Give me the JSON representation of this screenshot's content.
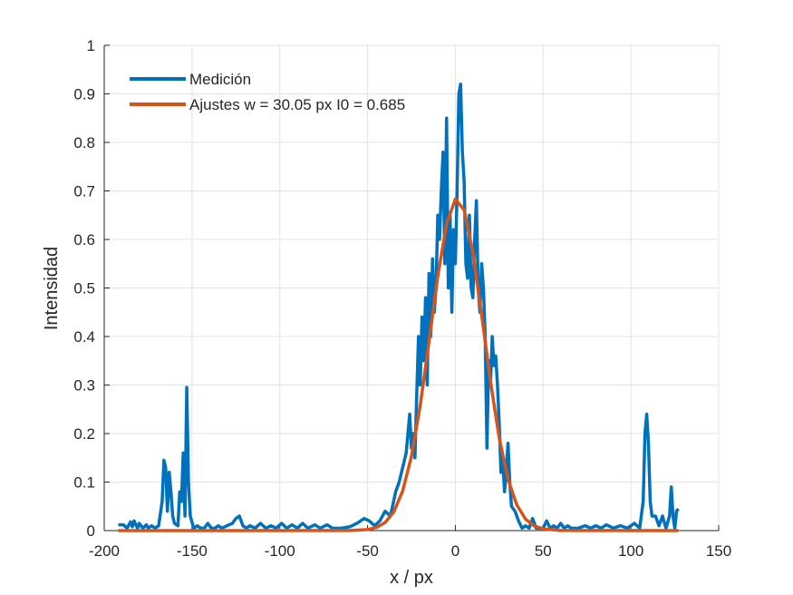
{
  "chart_data": {
    "type": "line",
    "xlabel": "x / px",
    "ylabel": "Intensidad",
    "xlim": [
      -200,
      150
    ],
    "ylim": [
      0,
      1
    ],
    "xticks": [
      -200,
      -150,
      -100,
      -50,
      0,
      50,
      100,
      150
    ],
    "yticks": [
      0,
      0.1,
      0.2,
      0.3,
      0.4,
      0.5,
      0.6,
      0.7,
      0.8,
      0.9,
      1
    ],
    "grid": true,
    "legend_position": "upper-left",
    "series": [
      {
        "name": "Medición",
        "color": "#0072bd",
        "x": [
          -192,
          -189,
          -187,
          -185,
          -184,
          -183,
          -181,
          -180,
          -178,
          -176,
          -175,
          -173,
          -171,
          -169,
          -167,
          -166,
          -165,
          -164,
          -163,
          -162,
          -161,
          -160,
          -158,
          -157,
          -156,
          -155,
          -154,
          -153,
          -152,
          -151,
          -149,
          -147,
          -145,
          -143,
          -141,
          -139,
          -137,
          -135,
          -133,
          -130,
          -127,
          -125,
          -123,
          -121,
          -119,
          -117,
          -114,
          -111,
          -108,
          -105,
          -102,
          -99,
          -96,
          -93,
          -90,
          -87,
          -84,
          -80,
          -77,
          -73,
          -70,
          -65,
          -60,
          -56,
          -52,
          -49,
          -46,
          -43,
          -40,
          -37,
          -34,
          -32,
          -30,
          -28,
          -26,
          -25,
          -24,
          -23,
          -22,
          -21,
          -20,
          -19,
          -18,
          -17,
          -16,
          -15,
          -14,
          -13,
          -12,
          -11,
          -10,
          -9,
          -8,
          -7,
          -6,
          -5,
          -4,
          -3,
          -2,
          -1,
          0,
          1,
          2,
          3,
          4,
          5,
          6,
          7,
          8,
          9,
          10,
          11,
          12,
          13,
          14,
          15,
          16,
          17,
          18,
          19,
          20,
          21,
          22,
          23,
          24,
          25,
          26,
          27,
          28,
          29,
          30,
          31,
          32,
          34,
          36,
          38,
          40,
          42,
          44,
          46,
          48,
          50,
          52,
          54,
          56,
          58,
          60,
          62,
          64,
          66,
          70,
          74,
          77,
          80,
          83,
          86,
          90,
          94,
          98,
          102,
          105,
          107,
          108,
          109,
          110,
          111,
          112,
          114,
          116,
          118,
          120,
          122,
          123,
          124,
          125,
          126,
          127
        ],
        "values": [
          0.012,
          0.012,
          0.005,
          0.018,
          0.008,
          0.02,
          0.005,
          0.015,
          0.005,
          0.012,
          0.005,
          0.01,
          0.005,
          0.01,
          0.06,
          0.145,
          0.13,
          0.04,
          0.12,
          0.08,
          0.03,
          0.015,
          0.01,
          0.08,
          0.06,
          0.16,
          0.03,
          0.295,
          0.1,
          0.03,
          0.005,
          0.01,
          0.005,
          0.005,
          0.015,
          0.005,
          0.005,
          0.01,
          0.005,
          0.01,
          0.015,
          0.025,
          0.03,
          0.01,
          0.005,
          0.01,
          0.005,
          0.015,
          0.005,
          0.01,
          0.005,
          0.015,
          0.005,
          0.012,
          0.005,
          0.015,
          0.005,
          0.012,
          0.005,
          0.012,
          0.005,
          0.005,
          0.008,
          0.015,
          0.025,
          0.02,
          0.01,
          0.02,
          0.04,
          0.03,
          0.08,
          0.1,
          0.13,
          0.16,
          0.24,
          0.17,
          0.2,
          0.15,
          0.28,
          0.4,
          0.3,
          0.44,
          0.35,
          0.48,
          0.3,
          0.53,
          0.4,
          0.56,
          0.45,
          0.5,
          0.65,
          0.6,
          0.7,
          0.78,
          0.55,
          0.85,
          0.5,
          0.65,
          0.45,
          0.62,
          0.55,
          0.7,
          0.9,
          0.92,
          0.78,
          0.72,
          0.55,
          0.52,
          0.65,
          0.5,
          0.48,
          0.6,
          0.68,
          0.5,
          0.45,
          0.55,
          0.5,
          0.4,
          0.17,
          0.35,
          0.3,
          0.4,
          0.34,
          0.36,
          0.3,
          0.22,
          0.12,
          0.15,
          0.08,
          0.12,
          0.18,
          0.1,
          0.05,
          0.04,
          0.02,
          0.005,
          0.01,
          0.005,
          0.025,
          0.005,
          0.005,
          0.005,
          0.02,
          0.005,
          0.01,
          0.005,
          0.015,
          0.005,
          0.01,
          0.005,
          0.005,
          0.01,
          0.005,
          0.01,
          0.005,
          0.012,
          0.005,
          0.01,
          0.005,
          0.015,
          0.005,
          0.06,
          0.2,
          0.24,
          0.18,
          0.06,
          0.03,
          0.03,
          0.01,
          0.03,
          0.005,
          0.03,
          0.09,
          0.03,
          0.005,
          0.04,
          0.045
        ]
      },
      {
        "name": "Ajustes w = 30.05 px I0 = 0.685",
        "color": "#d95319",
        "x": [
          -192,
          -60,
          -50,
          -45,
          -40,
          -35,
          -30,
          -25,
          -20,
          -15,
          -10,
          -5,
          0,
          5,
          10,
          15,
          20,
          25,
          30,
          35,
          40,
          45,
          50,
          60,
          127
        ],
        "values": [
          0,
          0.0002,
          0.0022,
          0.0063,
          0.0166,
          0.0388,
          0.0816,
          0.153,
          0.258,
          0.389,
          0.524,
          0.632,
          0.683,
          0.661,
          0.573,
          0.444,
          0.308,
          0.191,
          0.106,
          0.053,
          0.0236,
          0.0094,
          0.0034,
          0.0003,
          0
        ]
      }
    ]
  }
}
